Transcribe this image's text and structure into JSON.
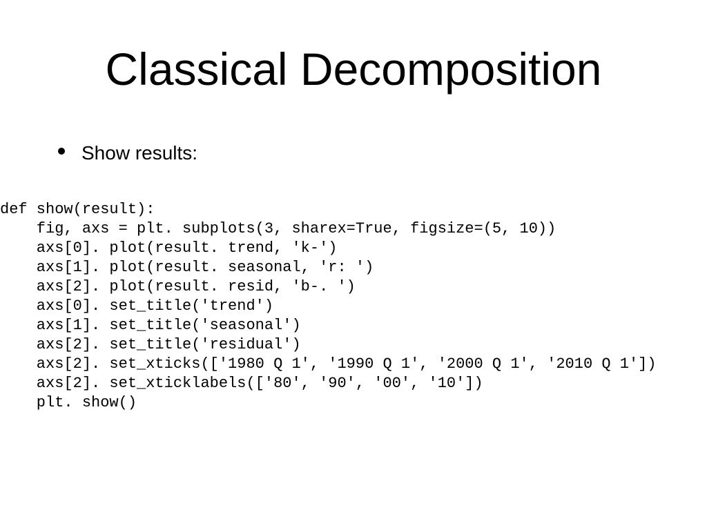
{
  "slide": {
    "title": "Classical Decomposition",
    "bullet": "Show results:",
    "code_lines": [
      "def show(result):",
      "    fig, axs = plt. subplots(3, sharex=True, figsize=(5, 10))",
      "    axs[0]. plot(result. trend, 'k-')",
      "    axs[1]. plot(result. seasonal, 'r: ')",
      "    axs[2]. plot(result. resid, 'b-. ')",
      "    axs[0]. set_title('trend')",
      "    axs[1]. set_title('seasonal')",
      "    axs[2]. set_title('residual')",
      "    axs[2]. set_xticks(['1980 Q 1', '1990 Q 1', '2000 Q 1', '2010 Q 1'])",
      "    axs[2]. set_xticklabels(['80', '90', '00', '10'])",
      "    plt. show()"
    ]
  },
  "style": {
    "background_color": "#ffffff",
    "text_color": "#000000",
    "title_fontsize": 66,
    "bullet_fontsize": 28,
    "code_fontsize": 22,
    "code_fontfamily": "Courier New",
    "title_fontfamily": "Arial"
  }
}
